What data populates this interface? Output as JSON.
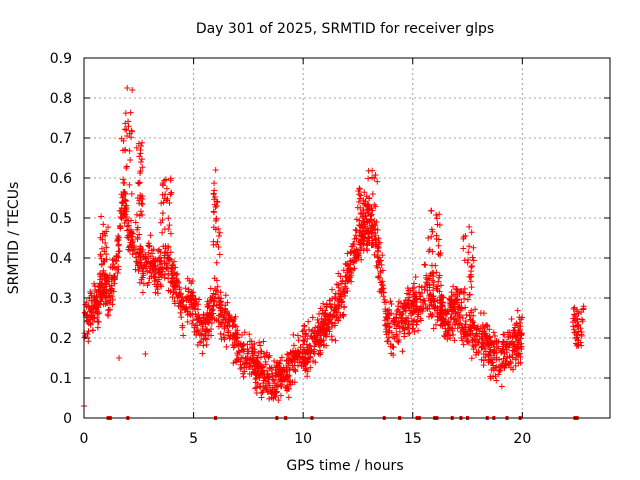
{
  "chart_data": {
    "type": "scatter",
    "title": "Day 301 of 2025, SRMTID for receiver glps",
    "xlabel": "GPS time / hours",
    "ylabel": "SRMTID / TECUs",
    "xlim": [
      0,
      24
    ],
    "ylim": [
      0,
      0.9
    ],
    "x_ticks": [
      0,
      5,
      10,
      15,
      20
    ],
    "x_tick_labels": [
      "0",
      "5",
      "10",
      "15",
      "20"
    ],
    "y_ticks": [
      0,
      0.1,
      0.2,
      0.3,
      0.4,
      0.5,
      0.6,
      0.7,
      0.8,
      0.9
    ],
    "y_tick_labels": [
      "0",
      "0.1",
      "0.2",
      "0.3",
      "0.4",
      "0.5",
      "0.6",
      "0.7",
      "0.8",
      "0.9"
    ],
    "grid": true,
    "marker": "+",
    "series_color": "#ff0000",
    "series": [
      {
        "name": "SRMTID",
        "profile": [
          [
            0.0,
            0.24
          ],
          [
            0.3,
            0.25
          ],
          [
            0.6,
            0.3
          ],
          [
            0.9,
            0.33
          ],
          [
            1.2,
            0.32
          ],
          [
            1.5,
            0.38
          ],
          [
            1.8,
            0.55
          ],
          [
            2.1,
            0.45
          ],
          [
            2.4,
            0.42
          ],
          [
            2.7,
            0.38
          ],
          [
            3.0,
            0.4
          ],
          [
            3.3,
            0.36
          ],
          [
            3.6,
            0.4
          ],
          [
            3.9,
            0.38
          ],
          [
            4.2,
            0.33
          ],
          [
            4.5,
            0.28
          ],
          [
            4.8,
            0.3
          ],
          [
            5.1,
            0.27
          ],
          [
            5.4,
            0.22
          ],
          [
            5.7,
            0.24
          ],
          [
            6.0,
            0.32
          ],
          [
            6.3,
            0.25
          ],
          [
            6.6,
            0.24
          ],
          [
            6.9,
            0.19
          ],
          [
            7.2,
            0.16
          ],
          [
            7.5,
            0.16
          ],
          [
            7.8,
            0.14
          ],
          [
            8.1,
            0.12
          ],
          [
            8.4,
            0.1
          ],
          [
            8.7,
            0.09
          ],
          [
            9.0,
            0.1
          ],
          [
            9.3,
            0.12
          ],
          [
            9.6,
            0.15
          ],
          [
            9.9,
            0.16
          ],
          [
            10.2,
            0.17
          ],
          [
            10.5,
            0.19
          ],
          [
            10.8,
            0.22
          ],
          [
            11.1,
            0.24
          ],
          [
            11.4,
            0.26
          ],
          [
            11.7,
            0.3
          ],
          [
            12.0,
            0.35
          ],
          [
            12.3,
            0.4
          ],
          [
            12.6,
            0.45
          ],
          [
            12.9,
            0.48
          ],
          [
            13.2,
            0.47
          ],
          [
            13.5,
            0.38
          ],
          [
            13.8,
            0.25
          ],
          [
            14.1,
            0.22
          ],
          [
            14.4,
            0.24
          ],
          [
            14.7,
            0.26
          ],
          [
            15.0,
            0.28
          ],
          [
            15.3,
            0.27
          ],
          [
            15.6,
            0.33
          ],
          [
            15.9,
            0.3
          ],
          [
            16.2,
            0.28
          ],
          [
            16.5,
            0.24
          ],
          [
            16.8,
            0.26
          ],
          [
            17.1,
            0.27
          ],
          [
            17.4,
            0.24
          ],
          [
            17.7,
            0.22
          ],
          [
            18.0,
            0.2
          ],
          [
            18.3,
            0.19
          ],
          [
            18.6,
            0.15
          ],
          [
            18.9,
            0.14
          ],
          [
            19.2,
            0.16
          ],
          [
            19.5,
            0.18
          ],
          [
            19.8,
            0.2
          ],
          [
            20.0,
            0.2
          ]
        ],
        "spread": 0.055,
        "density_per_hour": 115,
        "peaks": [
          {
            "x": [
              0.7,
              1.1
            ],
            "y": [
              0.35,
              0.51
            ]
          },
          {
            "x": [
              1.7,
              2.2
            ],
            "y": [
              0.55,
              0.84
            ]
          },
          {
            "x": [
              2.4,
              2.7
            ],
            "y": [
              0.5,
              0.7
            ]
          },
          {
            "x": [
              3.5,
              4.0
            ],
            "y": [
              0.45,
              0.6
            ]
          },
          {
            "x": [
              5.9,
              6.2
            ],
            "y": [
              0.4,
              0.62
            ]
          },
          {
            "x": [
              12.4,
              12.9
            ],
            "y": [
              0.45,
              0.58
            ]
          },
          {
            "x": [
              12.9,
              13.4
            ],
            "y": [
              0.45,
              0.62
            ]
          },
          {
            "x": [
              15.7,
              16.3
            ],
            "y": [
              0.35,
              0.52
            ]
          },
          {
            "x": [
              17.3,
              17.8
            ],
            "y": [
              0.3,
              0.48
            ]
          }
        ],
        "late_cluster": {
          "x": [
            22.3,
            22.8
          ],
          "y": [
            0.18,
            0.28
          ],
          "count": 45
        },
        "outliers": [
          {
            "x": 0.0,
            "y": 0.03
          },
          {
            "x": 1.6,
            "y": 0.15
          },
          {
            "x": 2.8,
            "y": 0.16
          }
        ],
        "zero_markers_x": [
          1.1,
          1.2,
          2.0,
          6.0,
          8.8,
          9.2,
          10.4,
          13.7,
          14.4,
          15.2,
          15.3,
          16.0,
          16.1,
          16.8,
          17.2,
          17.5,
          18.4,
          18.7,
          19.3,
          19.9,
          22.4,
          22.5
        ]
      }
    ]
  }
}
